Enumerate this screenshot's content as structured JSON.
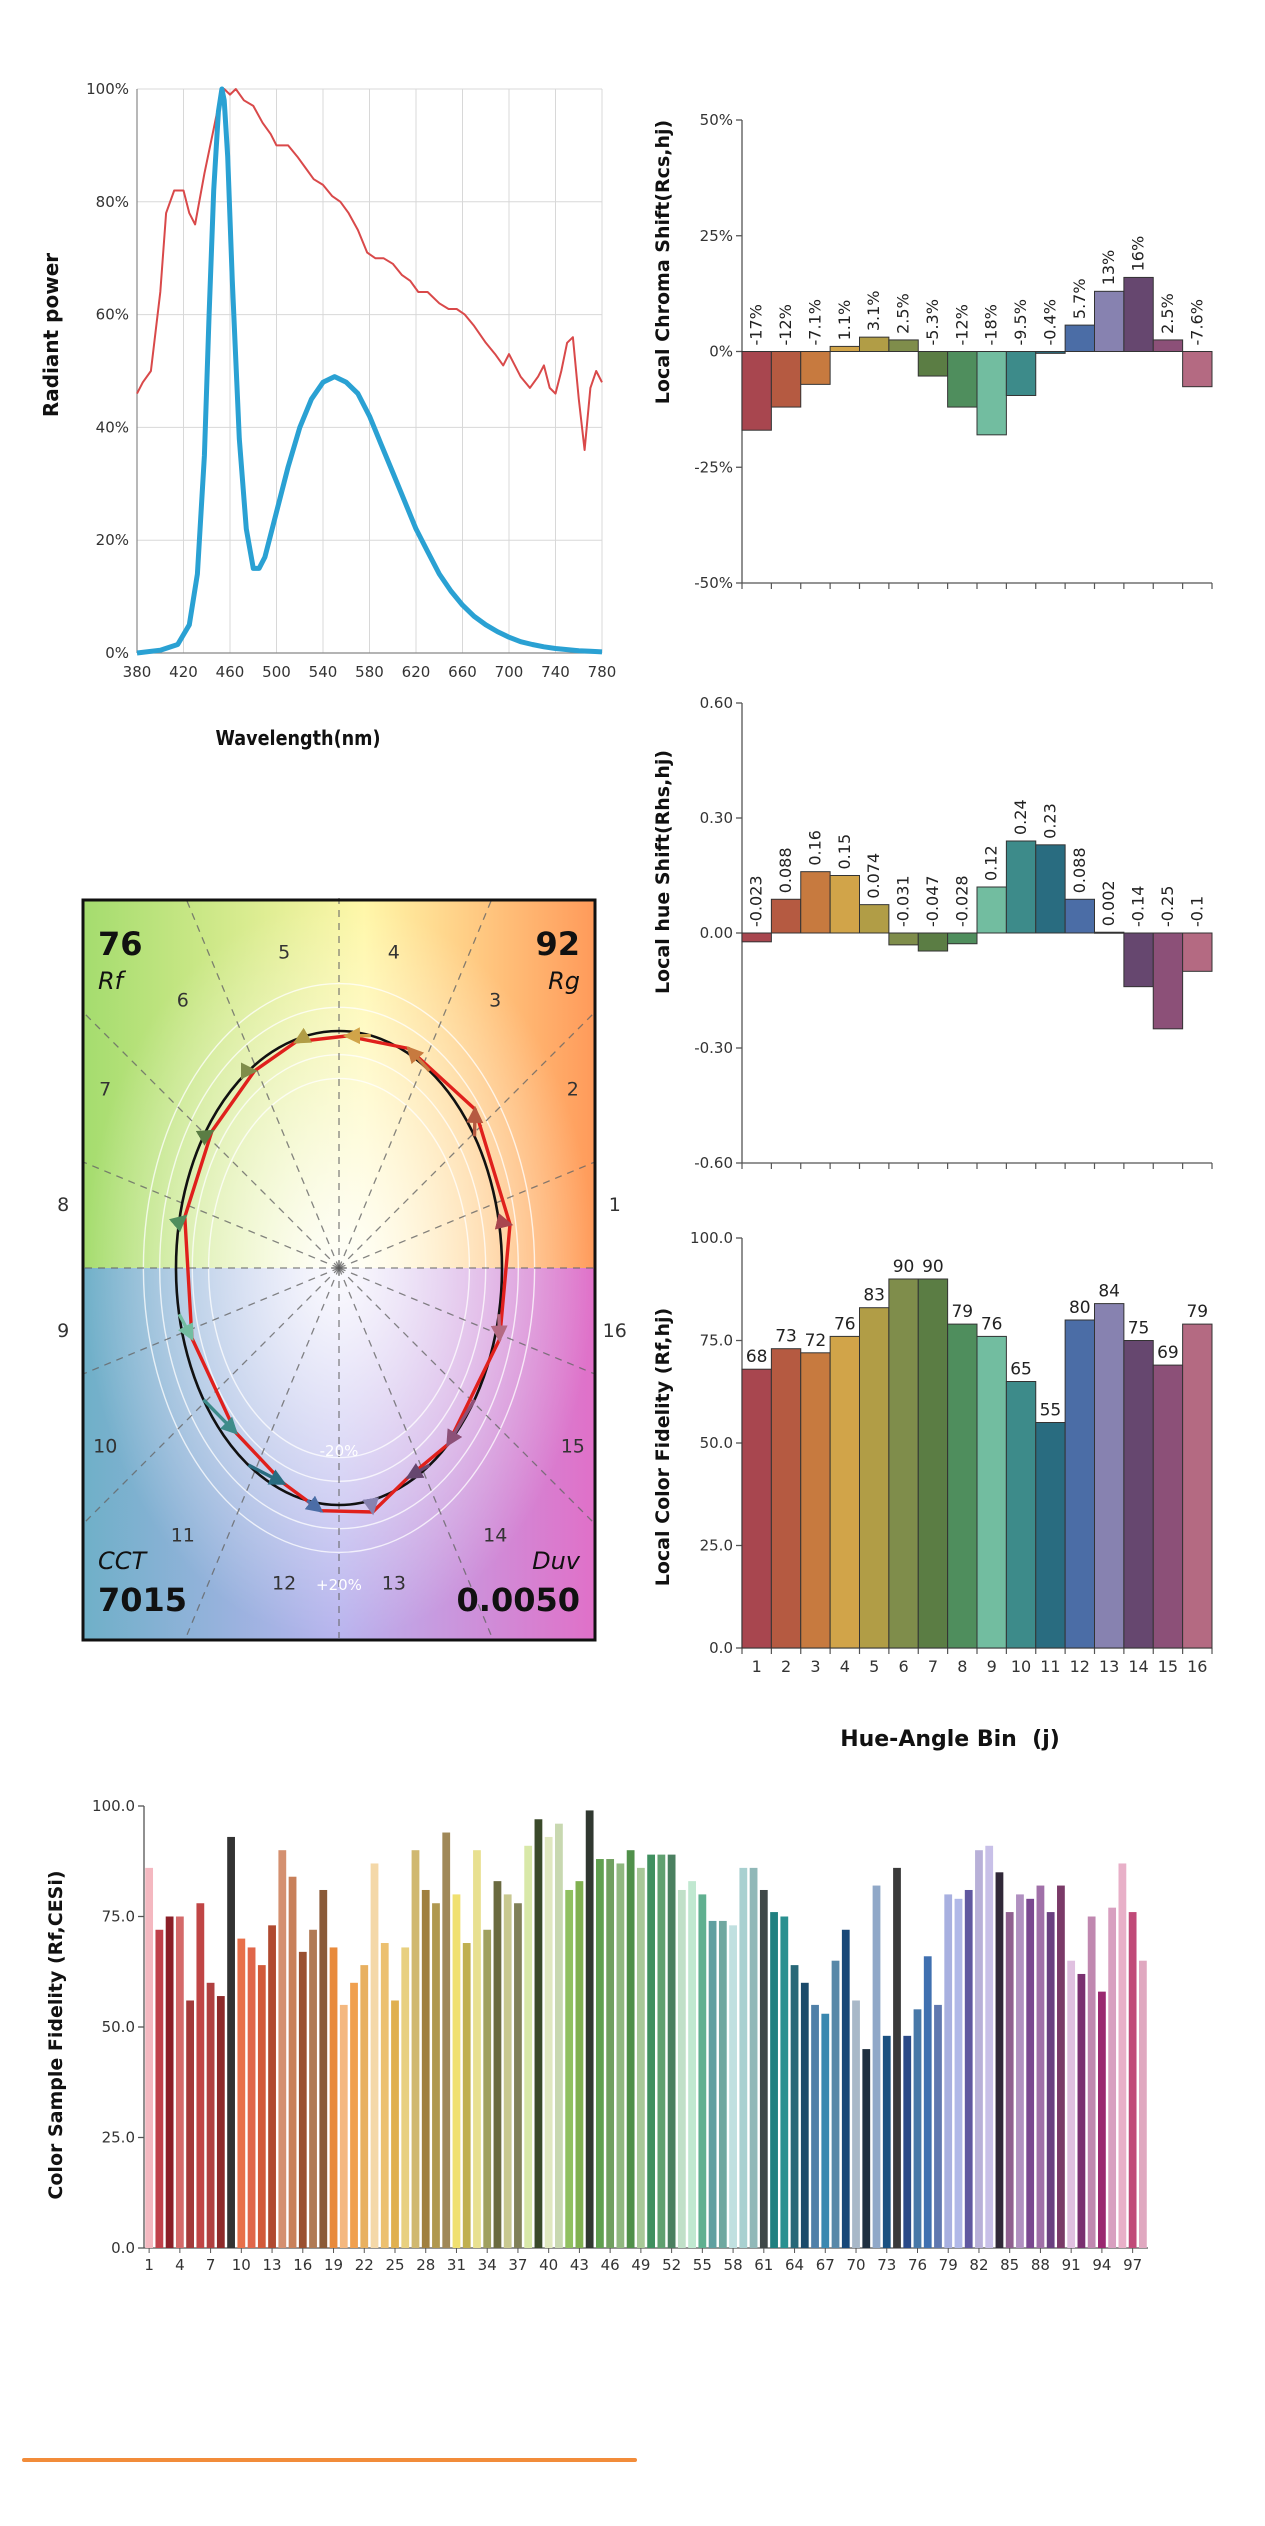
{
  "spectrum": {
    "y_label": "Radiant power",
    "x_label": "Wavelength(nm)",
    "y_ticks": [
      "0%",
      "20%",
      "40%",
      "60%",
      "80%",
      "100%"
    ],
    "x_ticks": [
      "380",
      "420",
      "460",
      "500",
      "540",
      "580",
      "620",
      "660",
      "700",
      "740",
      "780"
    ],
    "colors": {
      "reference": "#d9494a",
      "test": "#2aa1d3"
    }
  },
  "vector_graphic": {
    "rf_value": "76",
    "rf_label": "Rf",
    "rg_value": "92",
    "rg_label": "Rg",
    "cct_label": "CCT",
    "cct_value": "7015",
    "duv_label": "Duv",
    "duv_value": "0.0050",
    "ring_labels": [
      "-20%",
      "+20%"
    ],
    "bins": [
      "1",
      "2",
      "3",
      "4",
      "5",
      "6",
      "7",
      "8",
      "9",
      "10",
      "11",
      "12",
      "13",
      "14",
      "15",
      "16"
    ],
    "test_radius": [
      1.065,
      1.07,
      1.02,
      0.98,
      0.99,
      0.98,
      0.97,
      0.97,
      0.95,
      0.94,
      0.97,
      1.03,
      1.05,
      0.98,
      1.0,
      1.03
    ],
    "hue_shift_deg": [
      -1.3,
      5.0,
      9.0,
      8.6,
      4.2,
      -1.8,
      -2.7,
      -1.6,
      6.9,
      13.8,
      13.2,
      5.0,
      0.1,
      -8.0,
      -14.3,
      -5.7
    ]
  },
  "hue_axis_label": "Hue-Angle Bin  (j)",
  "bin_colors": [
    "#a8464f",
    "#b55a41",
    "#c77a3f",
    "#d1a449",
    "#b19d46",
    "#7f8d4b",
    "#5b7d44",
    "#4f8e5d",
    "#72bda0",
    "#3d8b8a",
    "#296c80",
    "#4b6da6",
    "#8782b0",
    "#66476f",
    "#8c5078",
    "#b46a82"
  ],
  "chart_data": [
    {
      "type": "line",
      "title": "",
      "xlabel": "Wavelength(nm)",
      "ylabel": "Radiant power",
      "xlim": [
        380,
        780
      ],
      "ylim": [
        0,
        100
      ],
      "grid": true,
      "series": [
        {
          "color": "#d9494a",
          "x": [
            380,
            385,
            392,
            400,
            405,
            412,
            420,
            425,
            430,
            438,
            445,
            450,
            455,
            460,
            465,
            472,
            480,
            488,
            495,
            500,
            510,
            518,
            525,
            532,
            540,
            548,
            555,
            562,
            570,
            578,
            585,
            592,
            600,
            608,
            615,
            622,
            630,
            640,
            648,
            655,
            662,
            670,
            680,
            688,
            695,
            700,
            710,
            718,
            725,
            730,
            735,
            740,
            745,
            750,
            755,
            760,
            765,
            770,
            775,
            780
          ],
          "y": [
            46,
            48,
            50,
            64,
            78,
            82,
            82,
            78,
            76,
            85,
            92,
            97,
            100,
            99,
            100,
            98,
            97,
            94,
            92,
            90,
            90,
            88,
            86,
            84,
            83,
            81,
            80,
            78,
            75,
            71,
            70,
            70,
            69,
            67,
            66,
            64,
            64,
            62,
            61,
            61,
            60,
            58,
            55,
            53,
            51,
            53,
            49,
            47,
            49,
            51,
            47,
            46,
            50,
            55,
            56,
            45,
            36,
            47,
            50,
            48
          ]
        },
        {
          "color": "#2aa1d3",
          "x": [
            380,
            400,
            415,
            425,
            432,
            438,
            442,
            446,
            450,
            453,
            455,
            458,
            462,
            468,
            474,
            480,
            485,
            490,
            495,
            500,
            510,
            520,
            530,
            540,
            550,
            560,
            570,
            580,
            590,
            600,
            610,
            620,
            630,
            640,
            650,
            660,
            670,
            680,
            690,
            700,
            710,
            720,
            730,
            740,
            750,
            760,
            770,
            780
          ],
          "y": [
            0,
            0.5,
            1.5,
            5,
            14,
            35,
            60,
            82,
            96,
            100,
            98,
            88,
            66,
            38,
            22,
            15,
            15,
            17,
            21,
            25,
            33,
            40,
            45,
            48,
            49,
            48,
            46,
            42,
            37,
            32,
            27,
            22,
            18,
            14,
            11,
            8.5,
            6.5,
            5,
            3.8,
            2.8,
            2,
            1.5,
            1.1,
            0.8,
            0.6,
            0.4,
            0.3,
            0.2
          ]
        }
      ]
    },
    {
      "type": "bar",
      "title": "",
      "ylabel": "Local Chroma Shift(Rcs,hj)",
      "ylim": [
        -50,
        50
      ],
      "ytick_labels": [
        "-50%",
        "-25%",
        "0%",
        "25%",
        "50%"
      ],
      "categories": [
        "1",
        "2",
        "3",
        "4",
        "5",
        "6",
        "7",
        "8",
        "9",
        "10",
        "11",
        "12",
        "13",
        "14",
        "15",
        "16"
      ],
      "values": [
        -17,
        -12,
        -7.1,
        1.1,
        3.1,
        2.5,
        -5.3,
        -12,
        -18,
        -9.5,
        -0.4,
        5.7,
        13,
        16,
        2.5,
        -7.6
      ],
      "data_labels": [
        "-17%",
        "-12%",
        "-7.1%",
        "1.1%",
        "3.1%",
        "2.5%",
        "-5.3%",
        "-12%",
        "-18%",
        "-9.5%",
        "-0.4%",
        "5.7%",
        "13%",
        "16%",
        "2.5%",
        "-7.6%"
      ]
    },
    {
      "type": "bar",
      "title": "",
      "ylabel": "Local hue Shift(Rhs,hj)",
      "ylim": [
        -0.6,
        0.6
      ],
      "ytick_labels": [
        "-0.60",
        "-0.30",
        "0.00",
        "0.30",
        "0.60"
      ],
      "categories": [
        "1",
        "2",
        "3",
        "4",
        "5",
        "6",
        "7",
        "8",
        "9",
        "10",
        "11",
        "12",
        "13",
        "14",
        "15",
        "16"
      ],
      "values": [
        -0.023,
        0.088,
        0.16,
        0.15,
        0.074,
        -0.031,
        -0.047,
        -0.028,
        0.12,
        0.24,
        0.23,
        0.088,
        0.002,
        -0.14,
        -0.25,
        -0.1
      ],
      "data_labels": [
        "-0.023",
        "0.088",
        "0.16",
        "0.15",
        "0.074",
        "-0.031",
        "-0.047",
        "-0.028",
        "0.12",
        "0.24",
        "0.23",
        "0.088",
        "0.002",
        "-0.14",
        "-0.25",
        "-0.1"
      ]
    },
    {
      "type": "bar",
      "title": "",
      "xlabel": "Hue-Angle Bin  (j)",
      "ylabel": "Local Color Fidelity (Rf,hj)",
      "ylim": [
        0,
        100
      ],
      "ytick_labels": [
        "0.0",
        "25.0",
        "50.0",
        "75.0",
        "100.0"
      ],
      "categories": [
        "1",
        "2",
        "3",
        "4",
        "5",
        "6",
        "7",
        "8",
        "9",
        "10",
        "11",
        "12",
        "13",
        "14",
        "15",
        "16"
      ],
      "values": [
        68,
        73,
        72,
        76,
        83,
        90,
        90,
        79,
        76,
        65,
        55,
        80,
        84,
        75,
        69,
        79
      ],
      "data_labels": [
        "68",
        "73",
        "72",
        "76",
        "83",
        "90",
        "90",
        "79",
        "76",
        "65",
        "55",
        "80",
        "84",
        "75",
        "69",
        "79"
      ]
    },
    {
      "type": "bar",
      "title": "",
      "ylabel": "Color Sample Fidelity (Rf,CESi)",
      "ylim": [
        0,
        100
      ],
      "ytick_labels": [
        "0.0",
        "25.0",
        "50.0",
        "75.0",
        "100.0"
      ],
      "xtick_labels": [
        "1",
        "4",
        "7",
        "10",
        "13",
        "16",
        "19",
        "22",
        "25",
        "28",
        "31",
        "34",
        "37",
        "40",
        "43",
        "46",
        "49",
        "52",
        "55",
        "58",
        "61",
        "64",
        "67",
        "70",
        "73",
        "76",
        "79",
        "82",
        "85",
        "88",
        "91",
        "94",
        "97"
      ],
      "values": [
        86,
        72,
        75,
        75,
        56,
        78,
        60,
        57,
        93,
        70,
        68,
        64,
        73,
        90,
        84,
        67,
        72,
        81,
        68,
        55,
        60,
        64,
        87,
        69,
        56,
        68,
        90,
        81,
        78,
        94,
        80,
        69,
        90,
        72,
        83,
        80,
        78,
        91,
        97,
        93,
        96,
        81,
        83,
        99,
        88,
        88,
        87,
        90,
        86,
        89,
        89,
        89,
        81,
        83,
        80,
        74,
        74,
        73,
        86,
        86,
        81,
        76,
        75,
        64,
        60,
        55,
        53,
        65,
        72,
        56,
        45,
        82,
        48,
        86,
        48,
        54,
        66,
        55,
        80,
        79,
        81,
        90,
        91,
        85,
        76,
        80,
        79,
        82,
        76,
        82,
        65,
        62,
        75,
        58,
        77,
        87,
        76,
        65
      ],
      "colors": [
        "#f4b8c0",
        "#c0404a",
        "#8b1f28",
        "#d46a6a",
        "#a33a3a",
        "#c04545",
        "#b04040",
        "#8e2a2a",
        "#333333",
        "#e8704a",
        "#e0664a",
        "#d25a3a",
        "#b04a30",
        "#d49070",
        "#c8805a",
        "#9a5030",
        "#b07a55",
        "#8a5a38",
        "#e88a3c",
        "#f4b880",
        "#f0a050",
        "#e8b060",
        "#f4d8a8",
        "#ecc070",
        "#e0b050",
        "#e8d080",
        "#d0b870",
        "#a08040",
        "#b09850",
        "#a08858",
        "#f0e070",
        "#c0b050",
        "#e8e090",
        "#a0a060",
        "#6a6a40",
        "#c8c890",
        "#808058",
        "#d8e8a8",
        "#3a4a2a",
        "#e0e8c0",
        "#c8d8b0",
        "#90c060",
        "#80b050",
        "#303830",
        "#60a050",
        "#70a060",
        "#90b880",
        "#50904a",
        "#a8c898",
        "#409060",
        "#60a070",
        "#4a8060",
        "#c0e0c8",
        "#c0e8d0",
        "#60b090",
        "#60a0a0",
        "#70a8a0",
        "#c0e0e0",
        "#a8d0d0",
        "#90b8b8",
        "#404848",
        "#208080",
        "#2a9090",
        "#286878",
        "#1a4a6a",
        "#5080a8",
        "#3a88b0",
        "#5888a8",
        "#184878",
        "#a8b8c8",
        "#203040",
        "#90a8c8",
        "#1a5080",
        "#3a3a3a",
        "#2a4a88",
        "#4878a8",
        "#4070b0",
        "#6078b0",
        "#a8b0e0",
        "#b0b8e8",
        "#6058a0",
        "#b8b0d8",
        "#c8c0e8",
        "#302838",
        "#906090",
        "#b090c0",
        "#7a4890",
        "#a070a8",
        "#6a4080",
        "#7a3a68",
        "#e0c0e0",
        "#7a3070",
        "#c088b0",
        "#9a2870",
        "#d8a0c0",
        "#e8b0c8",
        "#c04a78",
        "#e0a8c0"
      ]
    }
  ]
}
